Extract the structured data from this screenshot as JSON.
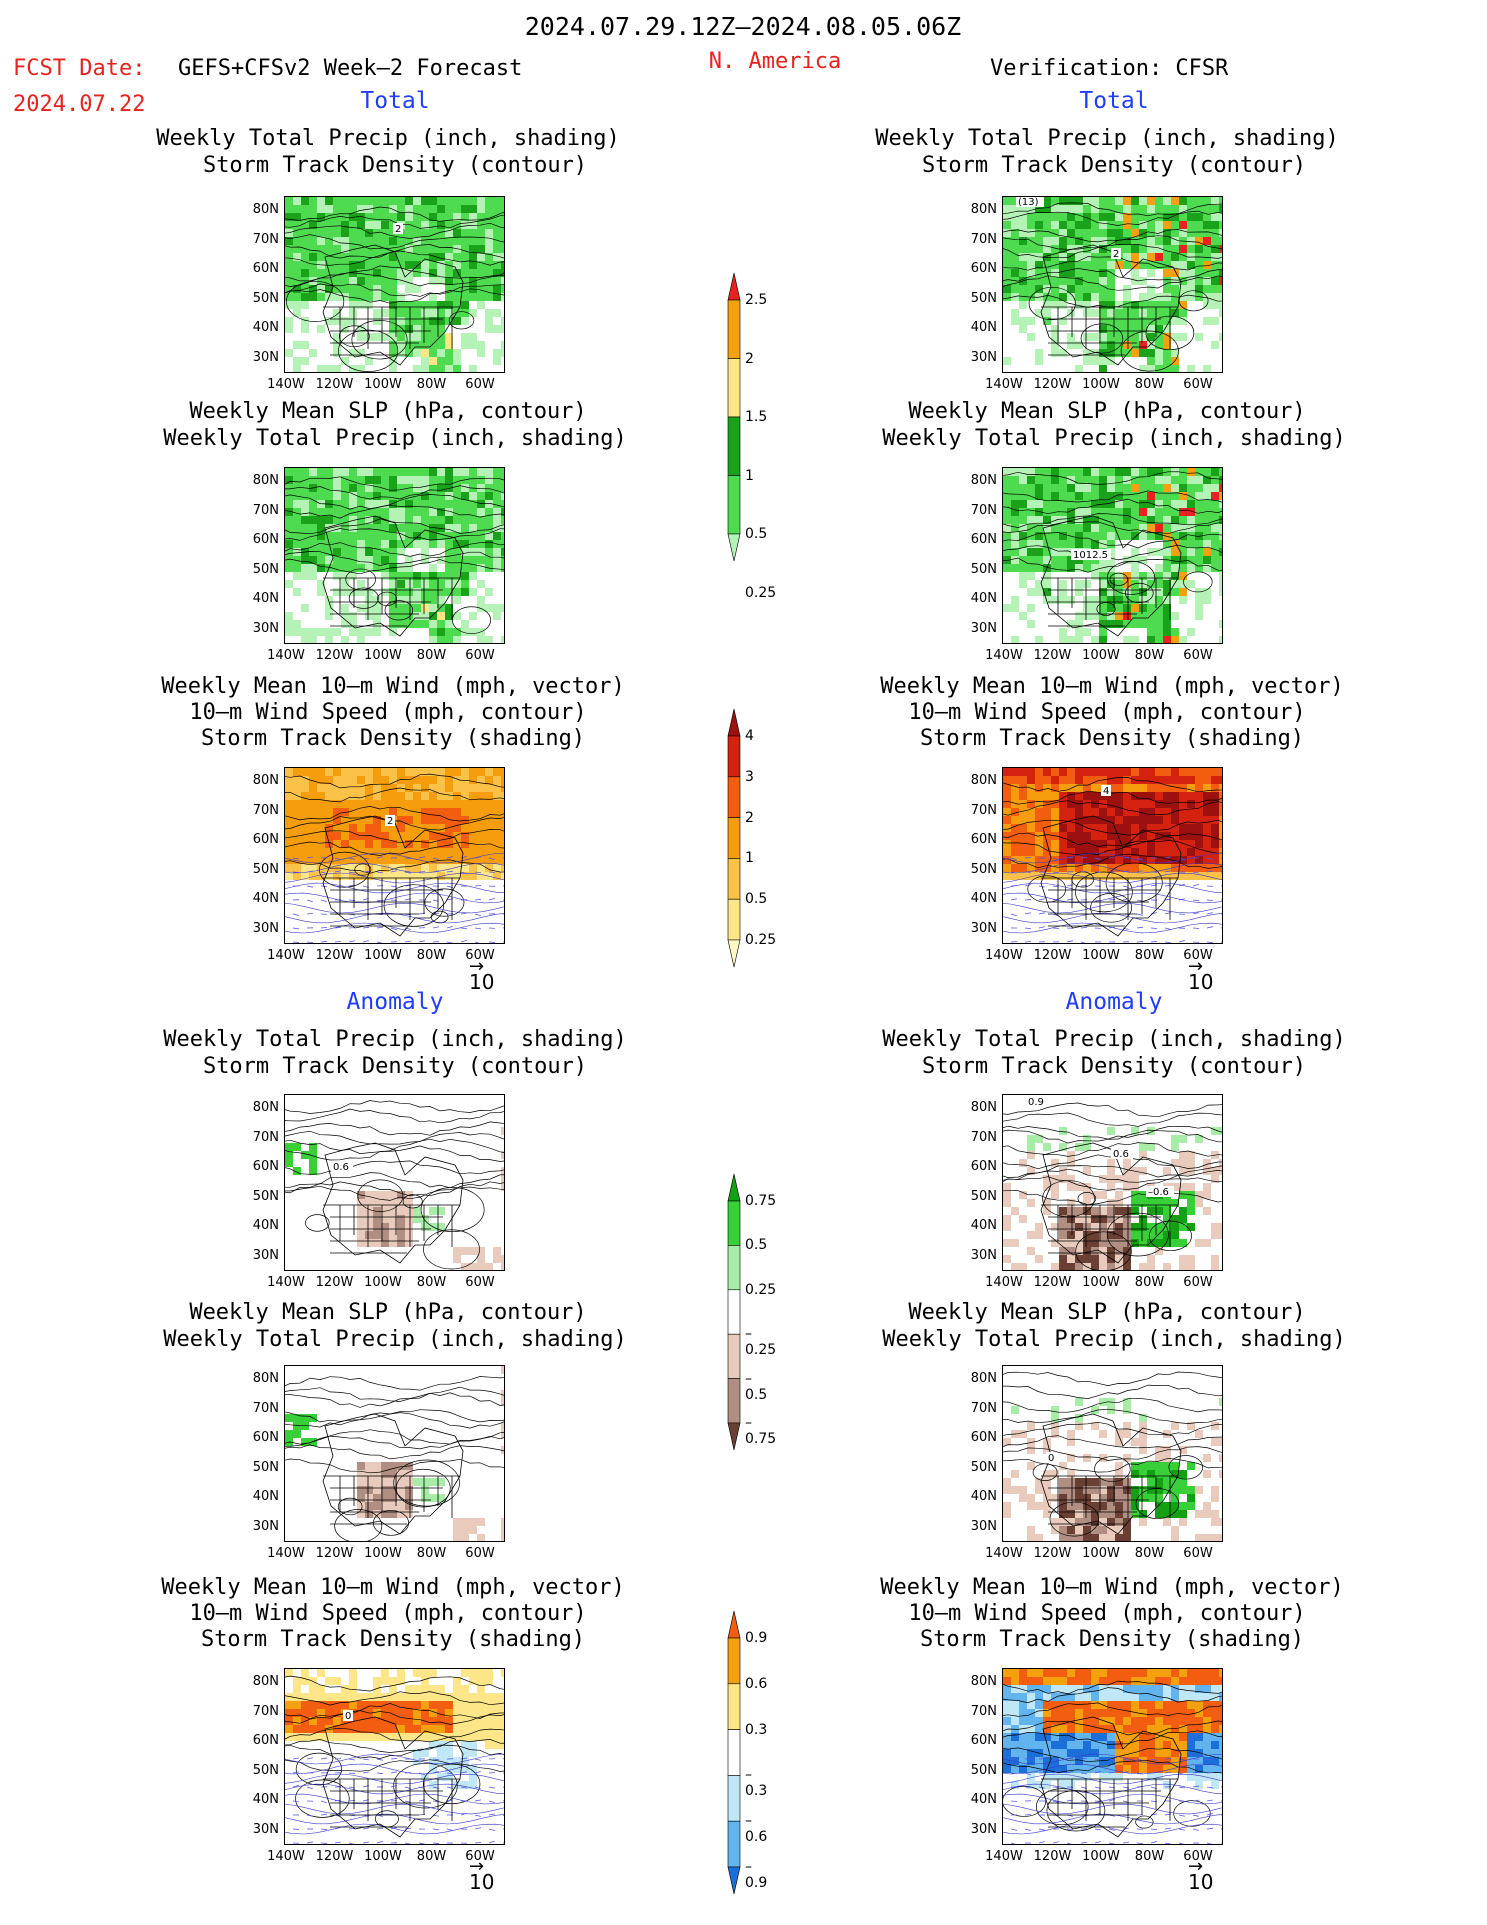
{
  "header": {
    "date_range": "2024.07.29.12Z–2024.08.05.06Z",
    "fcst_date_label": "FCST Date:",
    "fcst_date_value": "2024.07.22",
    "forecast_title": "GEFS+CFSv2 Week–2 Forecast",
    "region": "N. America",
    "verification": "Verification: CFSR"
  },
  "sections": {
    "total": "Total",
    "anomaly": "Anomaly"
  },
  "titles": {
    "precip_storm": [
      "Weekly Total Precip (inch, shading)",
      "Storm Track Density (contour)"
    ],
    "slp_precip": [
      "Weekly Mean SLP (hPa, contour)",
      "Weekly Total Precip (inch, shading)"
    ],
    "wind_storm": [
      "Weekly Mean 10–m Wind (mph, vector)",
      "10–m Wind Speed (mph, contour)",
      "Storm Track Density (shading)"
    ]
  },
  "axes": {
    "lat_labels": [
      "80N",
      "70N",
      "60N",
      "50N",
      "40N",
      "30N"
    ],
    "lon_labels": [
      "140W",
      "120W",
      "100W",
      "80W",
      "60W"
    ],
    "vector_ref": "10"
  },
  "contour_labels": {
    "fc_total_precip": "2",
    "obs_total_precip_a": "2",
    "obs_total_precip_b": "(13)",
    "obs_total_slp": "1012.5",
    "fc_total_wind": "2",
    "obs_total_wind": "4",
    "fc_anom_precip": "0.6",
    "obs_anom_precip_a": "0.9",
    "obs_anom_precip_b": "0.6",
    "obs_anom_precip_c": "–0.6",
    "fc_anom_wind": "0",
    "obs_anom_slp": "0"
  },
  "colorbars": {
    "total_precip": {
      "labels": [
        "2.5",
        "2",
        "1.5",
        "1",
        "0.5",
        "0.25"
      ],
      "colors": [
        "#e8231f",
        "#f5a10f",
        "#fde687",
        "#1aa31a",
        "#4fdb4f",
        "#b5f2b5"
      ]
    },
    "total_storm": {
      "labels": [
        "4",
        "3",
        "2",
        "1",
        "0.5",
        "0.25"
      ],
      "colors": [
        "#9c1010",
        "#d5210f",
        "#f25d0f",
        "#f59d0d",
        "#fbc24a",
        "#fde687",
        "#fff9c5"
      ]
    },
    "anom_precip": {
      "labels": [
        "0.75",
        "0.5",
        "0.25",
        "–0.25",
        "–0.5",
        "–0.75"
      ],
      "colors": [
        "#13a013",
        "#38cf38",
        "#a7eda7",
        "#ffffff",
        "#e8cbbd",
        "#b08e82",
        "#6a4035"
      ]
    },
    "anom_storm": {
      "labels": [
        "0.9",
        "0.6",
        "0.3",
        "–0.3",
        "–0.6",
        "–0.9"
      ],
      "colors": [
        "#f25d0f",
        "#f5a10f",
        "#fde687",
        "#ffffff",
        "#bfe7f5",
        "#61b4ee",
        "#1c6fd9"
      ]
    }
  }
}
